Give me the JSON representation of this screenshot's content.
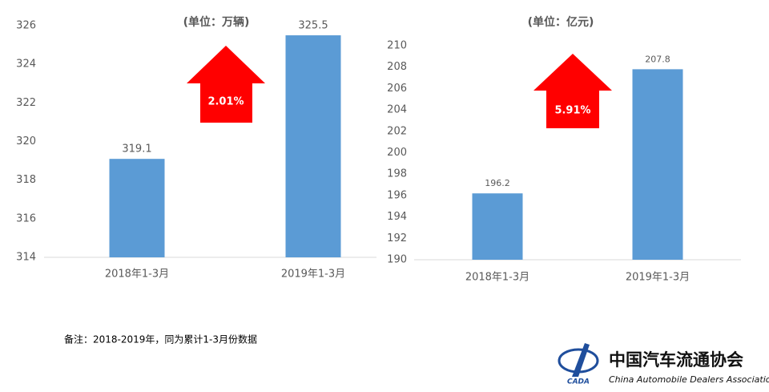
{
  "chart_data": [
    {
      "type": "bar",
      "title": "(单位：万辆)",
      "categories": [
        "2018年1-3月",
        "2019年1-3月"
      ],
      "values": [
        319.1,
        325.5
      ],
      "color": "#5b9bd5",
      "ylim": [
        314,
        326
      ],
      "yticks": [
        314,
        316,
        318,
        320,
        322,
        324,
        326
      ],
      "grid": false,
      "annotation": "2.01%",
      "annotation_color": "#ff0000"
    },
    {
      "type": "bar",
      "title": "(单位：亿元)",
      "categories": [
        "2018年1-3月",
        "2019年1-3月"
      ],
      "values": [
        196.2,
        207.8
      ],
      "color": "#5b9bd5",
      "ylim": [
        190,
        210
      ],
      "yticks": [
        190,
        192,
        194,
        196,
        198,
        200,
        202,
        204,
        206,
        208,
        210
      ],
      "grid": false,
      "annotation": "5.91%",
      "annotation_color": "#ff0000"
    }
  ],
  "footnote": "备注：2018-2019年，同为累计1-3月份数据",
  "logo": {
    "abbr": "CADA",
    "name": "中国汽车流通协会",
    "english": "China Automobile Dealers Association"
  }
}
